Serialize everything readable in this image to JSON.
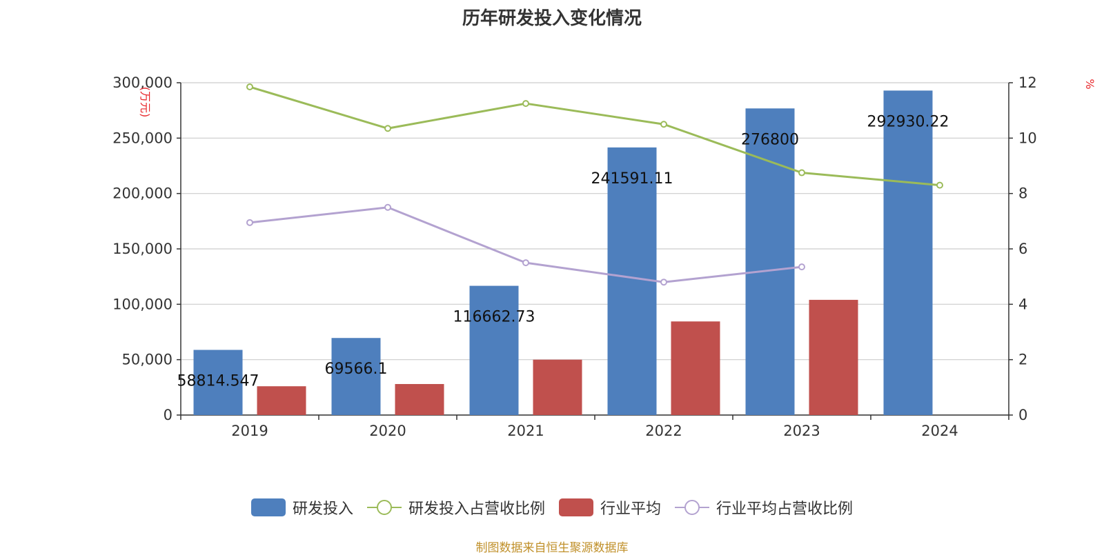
{
  "title": "历年研发投入变化情况",
  "source": "制图数据来自恒生聚源数据库",
  "chart_data": {
    "type": "bar",
    "categories": [
      "2019",
      "2020",
      "2021",
      "2022",
      "2023",
      "2024"
    ],
    "y_left": {
      "unit": "(万元)",
      "min": 0,
      "max": 300000,
      "ticks": [
        "0",
        "50,000",
        "100,000",
        "150,000",
        "200,000",
        "250,000",
        "300,000"
      ]
    },
    "y_right": {
      "unit": "%",
      "min": 0,
      "max": 12,
      "ticks": [
        "0",
        "2",
        "4",
        "6",
        "8",
        "10",
        "12"
      ]
    },
    "series": [
      {
        "name": "研发投入",
        "kind": "bar",
        "axis": "left",
        "color": "#4e7fbd",
        "values": [
          58814.547,
          69566.1,
          116662.73,
          241591.11,
          276800,
          292930.22
        ],
        "labels": [
          "58814.547",
          "69566.1",
          "116662.73",
          "241591.11",
          "276800",
          "292930.22"
        ]
      },
      {
        "name": "研发投入占营收比例",
        "kind": "line",
        "axis": "right",
        "color": "#9bbb59",
        "values": [
          11.85,
          10.35,
          11.25,
          10.5,
          8.75,
          8.3
        ]
      },
      {
        "name": "行业平均",
        "kind": "bar",
        "axis": "left",
        "color": "#c0504d",
        "values": [
          26000,
          28000,
          50000,
          84500,
          104000,
          null
        ]
      },
      {
        "name": "行业平均占营收比例",
        "kind": "line",
        "axis": "right",
        "color": "#b3a2d0",
        "values": [
          6.95,
          7.5,
          5.5,
          4.8,
          5.35,
          null
        ]
      }
    ],
    "grid": true,
    "legend_position": "bottom"
  }
}
